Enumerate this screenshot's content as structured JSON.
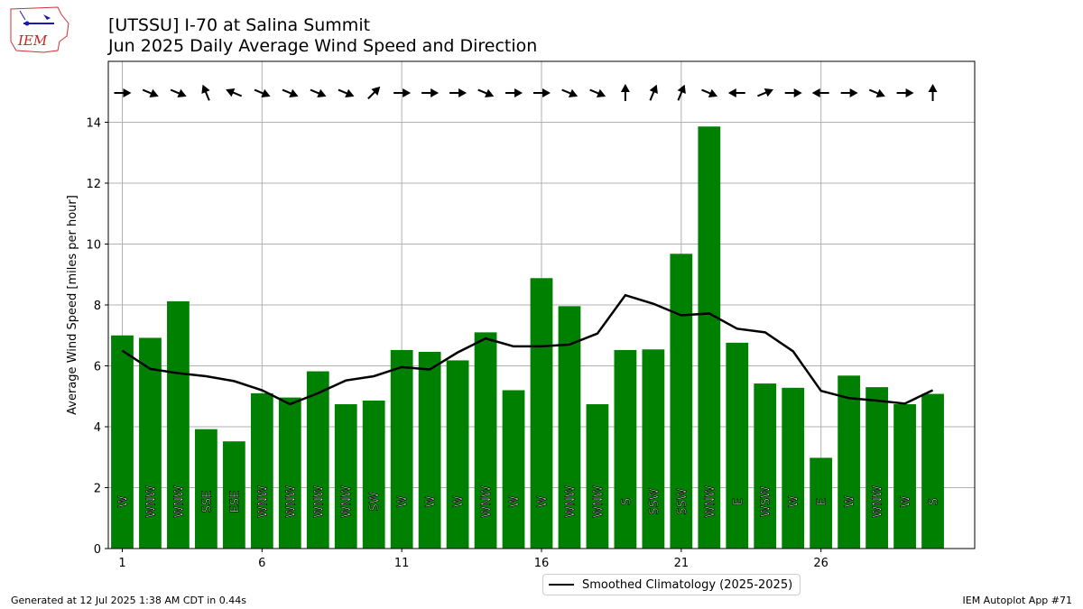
{
  "header": {
    "title_line1": "[UTSSU] I-70 at Salina Summit",
    "title_line2": "Jun 2025 Daily Average Wind Speed and Direction",
    "logo_text": "IEM"
  },
  "footer": {
    "generated": "Generated at 12 Jul 2025 1:38 AM CDT in 0.44s",
    "app": "IEM Autoplot App #71"
  },
  "legend": {
    "climatology_label": "Smoothed Climatology (2025-2025)"
  },
  "colors": {
    "bar": "#008000",
    "line": "#000000",
    "grid": "#b0b0b0"
  },
  "chart_data": {
    "type": "bar",
    "ylabel": "Average Wind Speed [miles per hour]",
    "xlabel": "",
    "ylim": [
      0,
      16
    ],
    "xlim": [
      0.5,
      31.5
    ],
    "x_ticks": [
      1,
      6,
      11,
      16,
      21,
      26
    ],
    "y_ticks": [
      0,
      2,
      4,
      6,
      8,
      10,
      12,
      14
    ],
    "grid": true,
    "legend_position": "bottom-center",
    "days": [
      1,
      2,
      3,
      4,
      5,
      6,
      7,
      8,
      9,
      10,
      11,
      12,
      13,
      14,
      15,
      16,
      17,
      18,
      19,
      20,
      21,
      22,
      23,
      24,
      25,
      26,
      27,
      28,
      29,
      30
    ],
    "values": [
      7.0,
      6.92,
      8.12,
      3.92,
      3.52,
      5.1,
      4.96,
      5.82,
      4.74,
      4.86,
      6.52,
      6.46,
      6.18,
      7.1,
      5.2,
      8.88,
      7.96,
      4.74,
      6.52,
      6.54,
      9.68,
      13.86,
      6.76,
      5.42,
      5.28,
      2.98,
      5.68,
      5.3,
      4.74,
      5.08
    ],
    "directions": [
      "W",
      "WNW",
      "WNW",
      "SSE",
      "ESE",
      "WNW",
      "WNW",
      "WNW",
      "WNW",
      "SW",
      "W",
      "W",
      "W",
      "WNW",
      "W",
      "W",
      "WNW",
      "WNW",
      "S",
      "SSW",
      "SSW",
      "WNW",
      "E",
      "WSW",
      "W",
      "E",
      "W",
      "WNW",
      "W",
      "S"
    ],
    "climatology": {
      "name": "Smoothed Climatology (2025-2025)",
      "values": [
        6.5,
        5.9,
        5.76,
        5.66,
        5.5,
        5.2,
        4.74,
        5.1,
        5.52,
        5.66,
        5.96,
        5.88,
        6.44,
        6.9,
        6.64,
        6.64,
        6.7,
        7.06,
        8.32,
        8.04,
        7.66,
        7.72,
        7.22,
        7.1,
        6.48,
        5.18,
        4.94,
        4.86,
        4.76,
        5.2
      ]
    }
  }
}
